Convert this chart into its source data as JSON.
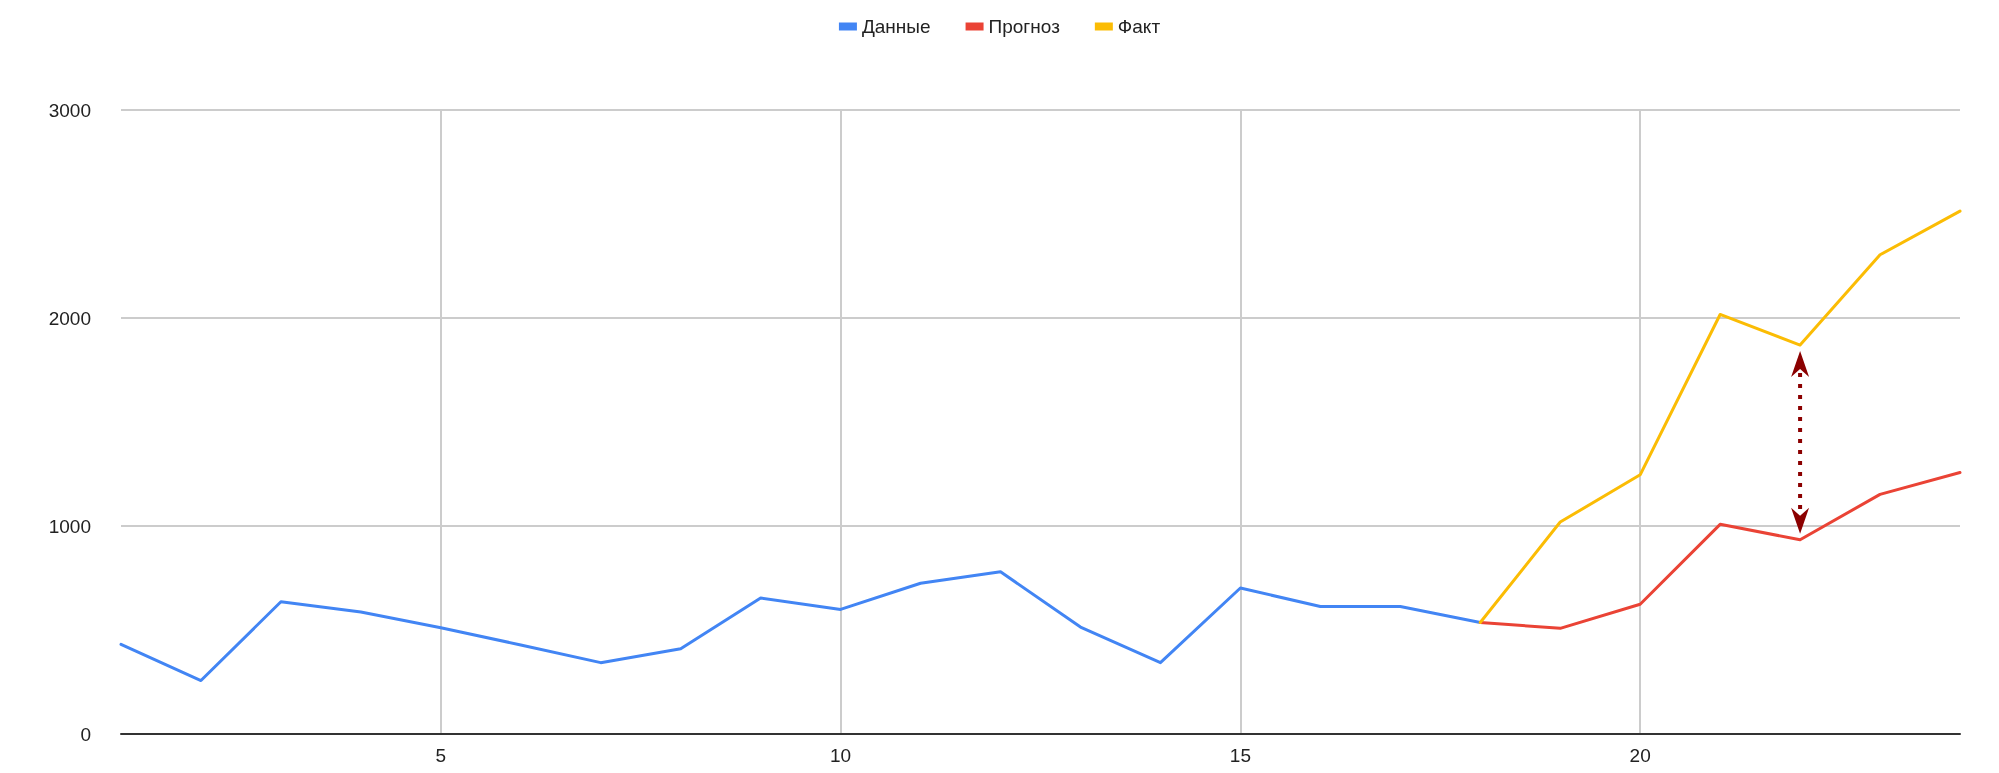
{
  "chart_data": {
    "type": "line",
    "xlim": [
      1,
      24
    ],
    "xticks": [
      5,
      10,
      15,
      20
    ],
    "ylim": [
      0,
      3000
    ],
    "yticks": [
      0,
      1000,
      2000,
      3000
    ],
    "grid": true,
    "legend": "top",
    "marker": "none",
    "line_style": "solid",
    "series": [
      {
        "name": "Данные",
        "color": "#4285f4",
        "x": [
          1,
          2,
          3,
          4,
          5,
          6,
          7,
          8,
          9,
          10,
          11,
          12,
          13,
          14,
          15,
          16,
          17,
          18
        ],
        "values": [
          431,
          257,
          636,
          587,
          511,
          428,
          343,
          410,
          654,
          599,
          725,
          780,
          514,
          343,
          702,
          613,
          613,
          536
        ]
      },
      {
        "name": "Прогноз",
        "color": "#ea4335",
        "x": [
          18,
          19,
          20,
          21,
          22,
          23,
          24
        ],
        "values": [
          536,
          508,
          624,
          1008,
          934,
          1152,
          1257
        ]
      },
      {
        "name": "Факт",
        "color": "#fbbc04",
        "x": [
          18,
          19,
          20,
          21,
          22,
          23,
          24
        ],
        "values": [
          536,
          1019,
          1246,
          2017,
          1870,
          2304,
          2514
        ]
      }
    ]
  }
}
